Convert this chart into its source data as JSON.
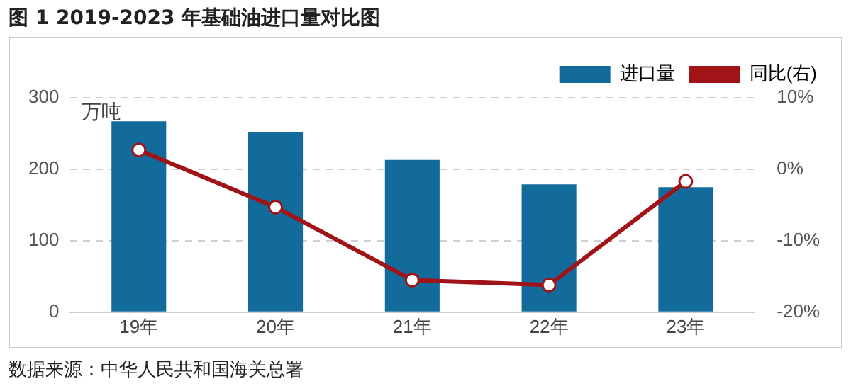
{
  "chart_data": {
    "type": "bar",
    "title": "图 1 2019-2023 年基础油进口量对比图",
    "ylabel": "万吨",
    "categories": [
      "19年",
      "20年",
      "21年",
      "22年",
      "23年"
    ],
    "series": [
      {
        "name": "进口量",
        "color": "#136b9c",
        "values": [
          267,
          252,
          213,
          179,
          175
        ]
      },
      {
        "name": "同比(右)",
        "type": "line",
        "axis": "y2",
        "color": "#a01418",
        "values": [
          2.7,
          -5.3,
          -15.5,
          -16.2,
          -1.7
        ]
      }
    ],
    "ylim": [
      0,
      300
    ],
    "yticks": [
      0,
      100,
      200,
      300
    ],
    "y2lim": [
      -20,
      10
    ],
    "y2ticks": [
      {
        "value": 10,
        "label": "10%"
      },
      {
        "value": 0,
        "label": "0%"
      },
      {
        "value": -10,
        "label": "-10%"
      },
      {
        "value": -20,
        "label": "-20%"
      }
    ],
    "grid": "y",
    "legend": "top right",
    "marker": "circle",
    "line_style": "solid",
    "annotations": [
      "数据来源：中华人民共和国海关总署"
    ]
  }
}
